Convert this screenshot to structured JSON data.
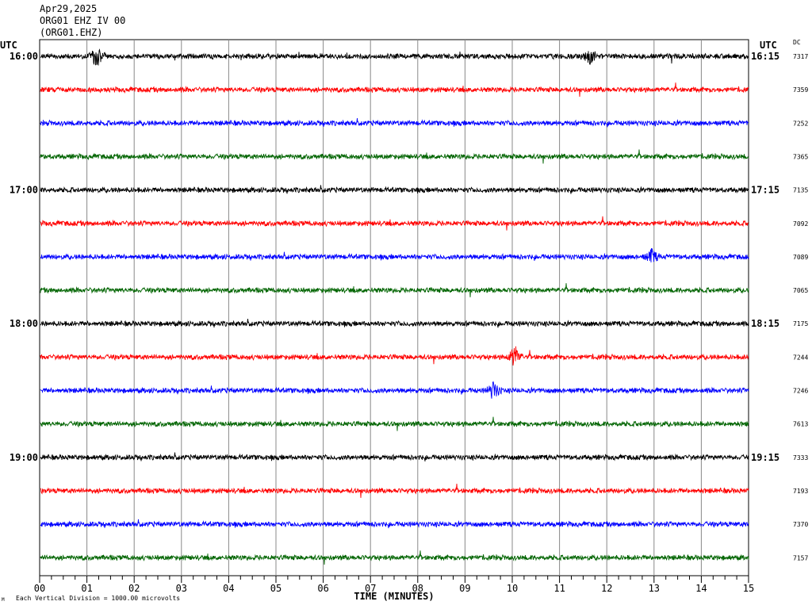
{
  "header": {
    "date": "Apr29,2025",
    "station_line": "ORG01 EHZ IV 00",
    "channel_line": "(ORG01.EHZ)"
  },
  "left_utc_label": "UTC",
  "right_utc_label": "UTC",
  "dc_label": "DC",
  "footer": {
    "scale_note": "Each Vertical Division = 1000.00 microvolts",
    "mark": "M"
  },
  "colors": {
    "trace_cycle": [
      "#000000",
      "#ff0000",
      "#0000ff",
      "#006400"
    ],
    "grid": "#888888",
    "frame": "#000000"
  },
  "chart_data": {
    "type": "line",
    "title": "",
    "xlabel": "TIME (MINUTES)",
    "ylabel": "",
    "xlim": [
      0,
      15
    ],
    "x_ticks": [
      "00",
      "01",
      "02",
      "03",
      "04",
      "05",
      "06",
      "07",
      "08",
      "09",
      "10",
      "11",
      "12",
      "13",
      "14",
      "15"
    ],
    "grid": true,
    "left_time_labels": [
      {
        "row": 0,
        "text": "16:00"
      },
      {
        "row": 4,
        "text": "17:00"
      },
      {
        "row": 8,
        "text": "18:00"
      },
      {
        "row": 12,
        "text": "19:00"
      }
    ],
    "right_time_labels": [
      {
        "row": 0,
        "text": "16:15"
      },
      {
        "row": 4,
        "text": "17:15"
      },
      {
        "row": 8,
        "text": "18:15"
      },
      {
        "row": 12,
        "text": "19:15"
      }
    ],
    "traces": [
      {
        "dc": "7317",
        "events": [
          {
            "minute": 1.2,
            "amplitude": 1.0
          },
          {
            "minute": 11.65,
            "amplitude": 0.7
          }
        ]
      },
      {
        "dc": "7359",
        "events": []
      },
      {
        "dc": "7252",
        "events": []
      },
      {
        "dc": "7365",
        "events": []
      },
      {
        "dc": "7135",
        "events": []
      },
      {
        "dc": "7092",
        "events": []
      },
      {
        "dc": "7089",
        "events": [
          {
            "minute": 12.95,
            "amplitude": 0.6
          }
        ]
      },
      {
        "dc": "7065",
        "events": []
      },
      {
        "dc": "7175",
        "events": []
      },
      {
        "dc": "7244",
        "events": [
          {
            "minute": 10.05,
            "amplitude": 1.0
          }
        ]
      },
      {
        "dc": "7246",
        "events": [
          {
            "minute": 9.6,
            "amplitude": 0.8
          }
        ]
      },
      {
        "dc": "7613",
        "events": []
      },
      {
        "dc": "7333",
        "events": []
      },
      {
        "dc": "7193",
        "events": []
      },
      {
        "dc": "7370",
        "events": []
      },
      {
        "dc": "7157",
        "events": []
      }
    ]
  }
}
